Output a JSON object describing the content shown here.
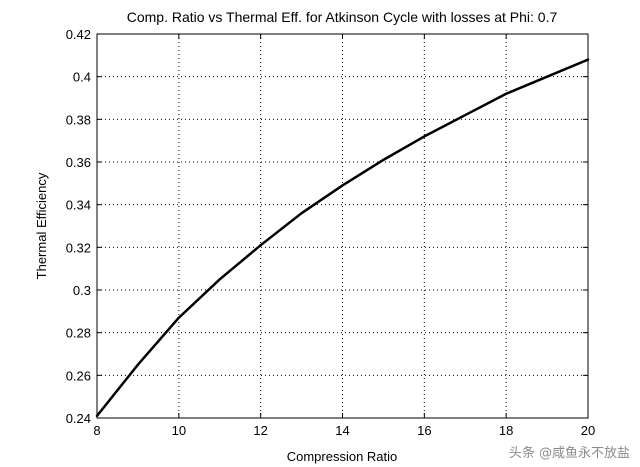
{
  "chart_data": {
    "type": "line",
    "title": "Comp. Ratio vs Thermal Eff. for Atkinson Cycle with losses at Phi: 0.7",
    "xlabel": "Compression Ratio",
    "ylabel": "Thermal Efficiency",
    "xlim": [
      8,
      20
    ],
    "ylim": [
      0.24,
      0.42
    ],
    "xticks": [
      8,
      10,
      12,
      14,
      16,
      18,
      20
    ],
    "xtick_labels": [
      "8",
      "10",
      "12",
      "14",
      "16",
      "18",
      "20"
    ],
    "yticks": [
      0.24,
      0.26,
      0.28,
      0.3,
      0.32,
      0.34,
      0.36,
      0.38,
      0.4,
      0.42
    ],
    "ytick_labels": [
      "0.24",
      "0.26",
      "0.28",
      "0.3",
      "0.32",
      "0.34",
      "0.36",
      "0.38",
      "0.4",
      "0.42"
    ],
    "grid": true,
    "grid_style": "dotted",
    "series": [
      {
        "name": "Thermal Efficiency",
        "color": "#000000",
        "x": [
          8,
          9,
          10,
          11,
          12,
          13,
          14,
          15,
          16,
          17,
          18,
          19,
          20
        ],
        "y": [
          0.241,
          0.265,
          0.287,
          0.305,
          0.321,
          0.336,
          0.349,
          0.361,
          0.372,
          0.382,
          0.392,
          0.4,
          0.408
        ]
      }
    ]
  },
  "watermark": {
    "text": "头条 @咸鱼永不放盐"
  }
}
